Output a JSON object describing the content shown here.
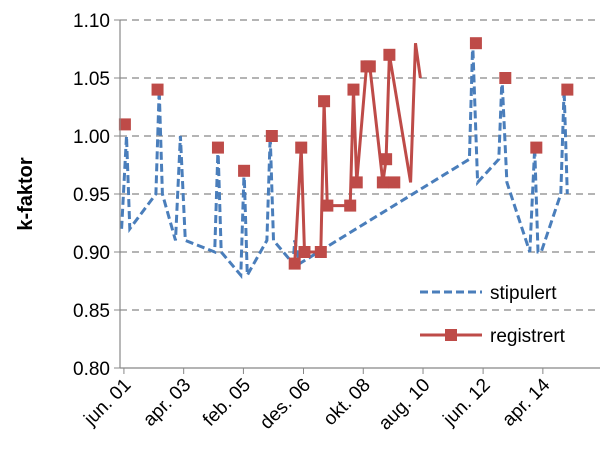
{
  "chart_data": {
    "type": "line",
    "xlabel": "",
    "ylabel": "k-faktor",
    "ylim": [
      0.8,
      1.1
    ],
    "yticks": [
      "0.80",
      "0.85",
      "0.90",
      "0.95",
      "1.00",
      "1.05",
      "1.10"
    ],
    "xlim": [
      2001.3,
      2016.0
    ],
    "xticks": [
      {
        "label": "jun. 01",
        "x": 2001.42
      },
      {
        "label": "apr. 03",
        "x": 2003.25
      },
      {
        "label": "feb. 05",
        "x": 2005.08
      },
      {
        "label": "des. 06",
        "x": 2006.92
      },
      {
        "label": "okt. 08",
        "x": 2008.75
      },
      {
        "label": "aug. 10",
        "x": 2010.58
      },
      {
        "label": "jun. 12",
        "x": 2012.42
      },
      {
        "label": "apr. 14",
        "x": 2014.25
      }
    ],
    "grid": "horizontal-dashed",
    "legend_position": "bottom-right",
    "series": [
      {
        "name": "stipulert",
        "style": "dashed",
        "color": "#4a7ebb",
        "x": [
          2001.35,
          2001.5,
          2001.6,
          2002.4,
          2002.5,
          2002.6,
          2003.0,
          2003.15,
          2003.3,
          2004.2,
          2004.3,
          2004.4,
          2005.0,
          2005.1,
          2005.2,
          2005.8,
          2005.9,
          2006.0,
          2006.6,
          2006.65,
          2006.8,
          2012.0,
          2012.1,
          2012.25,
          2012.9,
          2013.0,
          2013.15,
          2013.85,
          2014.0,
          2014.1,
          2014.2,
          2014.8,
          2014.9,
          2015.0
        ],
        "y": [
          0.92,
          1.0,
          0.92,
          0.95,
          1.04,
          0.95,
          0.91,
          1.0,
          0.91,
          0.9,
          0.99,
          0.9,
          0.88,
          0.97,
          0.88,
          0.91,
          1.0,
          0.91,
          0.89,
          0.91,
          0.89,
          0.98,
          1.08,
          0.96,
          0.98,
          1.05,
          0.96,
          0.9,
          0.99,
          0.9,
          0.9,
          0.95,
          1.04,
          0.95
        ]
      },
      {
        "name": "registrert",
        "style": "solid-square",
        "color": "#be4b48",
        "x": [
          2006.65,
          2006.85,
          2006.95,
          2007.45,
          2007.55,
          2007.65,
          2008.35,
          2008.45,
          2008.55,
          2008.85,
          2008.95,
          2009.35,
          2009.45,
          2009.55,
          2010.2,
          2010.35,
          2010.5
        ],
        "y": [
          0.89,
          0.99,
          0.9,
          0.9,
          1.03,
          0.94,
          0.94,
          1.04,
          0.96,
          1.06,
          1.06,
          0.96,
          0.98,
          1.07,
          0.96,
          1.08,
          1.05
        ],
        "points": [
          [
            2001.45,
            1.01
          ],
          [
            2002.45,
            1.04
          ],
          [
            2004.3,
            0.99
          ],
          [
            2005.1,
            0.97
          ],
          [
            2005.95,
            1.0
          ],
          [
            2006.65,
            0.89
          ],
          [
            2006.85,
            0.99
          ],
          [
            2006.95,
            0.9
          ],
          [
            2007.45,
            0.9
          ],
          [
            2007.55,
            1.03
          ],
          [
            2007.65,
            0.94
          ],
          [
            2008.35,
            0.94
          ],
          [
            2008.45,
            1.04
          ],
          [
            2008.55,
            0.96
          ],
          [
            2008.85,
            1.06
          ],
          [
            2008.95,
            1.06
          ],
          [
            2009.35,
            0.96
          ],
          [
            2009.45,
            0.98
          ],
          [
            2009.55,
            1.07
          ],
          [
            2009.7,
            0.96
          ],
          [
            2012.2,
            1.08
          ],
          [
            2013.1,
            1.05
          ],
          [
            2014.05,
            0.99
          ],
          [
            2015.0,
            1.04
          ]
        ]
      }
    ]
  }
}
